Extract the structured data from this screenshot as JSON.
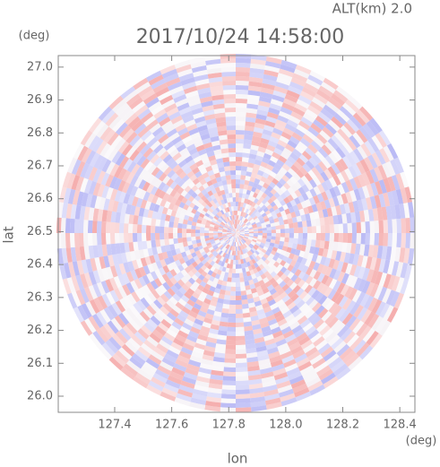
{
  "chart_data": {
    "type": "radar-ppi",
    "title": "2017/10/24 14:58:00",
    "subtitle": "ALT(km) 2.0",
    "x_label": "lon",
    "y_label": "lat",
    "x_unit": "(deg)",
    "y_unit": "(deg)",
    "xlim": [
      127.202,
      128.453
    ],
    "ylim": [
      25.951,
      27.035
    ],
    "xticks": [
      127.4,
      127.6,
      127.8,
      {
        "value": 128,
        "label": "128.0"
      },
      128.2,
      128.4
    ],
    "yticks": [
      {
        "value": 26,
        "label": "26.0"
      },
      26.1,
      26.2,
      26.3,
      26.4,
      26.5,
      26.6,
      26.7,
      26.8,
      26.9,
      {
        "value": 27,
        "label": "27.0"
      }
    ]
  }
}
